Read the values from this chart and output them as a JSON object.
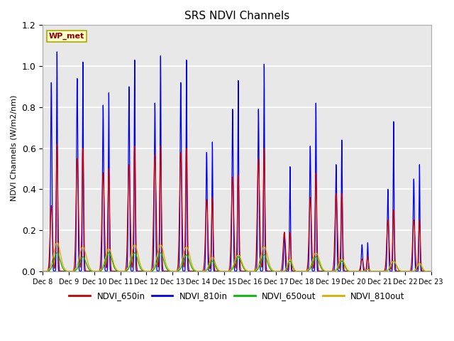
{
  "title": "SRS NDVI Channels",
  "ylabel": "NDVI Channels (W/m2/nm)",
  "annotation": "WP_met",
  "ylim": [
    0.0,
    1.2
  ],
  "background_color": "#e8e8e8",
  "grid_color": "white",
  "series": {
    "NDVI_650in": {
      "color": "#cc0000"
    },
    "NDVI_810in": {
      "color": "#0000ee"
    },
    "NDVI_650out": {
      "color": "#00bb00"
    },
    "NDVI_810out": {
      "color": "#ddaa00"
    }
  },
  "x_tick_labels": [
    "Dec 8",
    "Dec 9",
    "Dec 10",
    "Dec 11",
    "Dec 12",
    "Dec 13",
    "Dec 14",
    "Dec 15",
    "Dec 16",
    "Dec 17",
    "Dec 18",
    "Dec 19",
    "Dec 20",
    "Dec 21",
    "Dec 22",
    "Dec 23"
  ],
  "x_tick_positions": [
    8,
    9,
    10,
    11,
    12,
    13,
    14,
    15,
    16,
    17,
    18,
    19,
    20,
    21,
    22,
    23
  ],
  "day_spikes": [
    {
      "day": 8,
      "pre": {
        "blue": 0.92,
        "red": 0.32,
        "sw": 0.025
      },
      "main": {
        "blue": 1.07,
        "red": 0.62,
        "sw": 0.018
      },
      "green": 0.09,
      "orange": 0.14,
      "g_sw": 0.12
    },
    {
      "day": 9,
      "pre": {
        "blue": 0.94,
        "red": 0.55,
        "sw": 0.025
      },
      "main": {
        "blue": 1.02,
        "red": 0.6,
        "sw": 0.018
      },
      "green": 0.07,
      "orange": 0.12,
      "g_sw": 0.12
    },
    {
      "day": 10,
      "pre": {
        "blue": 0.81,
        "red": 0.48,
        "sw": 0.025
      },
      "main": {
        "blue": 0.87,
        "red": 0.5,
        "sw": 0.018
      },
      "green": 0.09,
      "orange": 0.11,
      "g_sw": 0.12
    },
    {
      "day": 11,
      "pre": {
        "blue": 0.9,
        "red": 0.52,
        "sw": 0.025
      },
      "main": {
        "blue": 1.03,
        "red": 0.61,
        "sw": 0.018
      },
      "green": 0.09,
      "orange": 0.13,
      "g_sw": 0.12
    },
    {
      "day": 12,
      "pre": {
        "blue": 0.82,
        "red": 0.57,
        "sw": 0.025
      },
      "main": {
        "blue": 1.05,
        "red": 0.61,
        "sw": 0.018
      },
      "green": 0.09,
      "orange": 0.13,
      "g_sw": 0.12
    },
    {
      "day": 13,
      "pre": {
        "blue": 0.92,
        "red": 0.58,
        "sw": 0.025
      },
      "main": {
        "blue": 1.03,
        "red": 0.6,
        "sw": 0.018
      },
      "green": 0.08,
      "orange": 0.12,
      "g_sw": 0.12
    },
    {
      "day": 14,
      "pre": {
        "blue": 0.58,
        "red": 0.35,
        "sw": 0.025
      },
      "main": {
        "blue": 0.63,
        "red": 0.36,
        "sw": 0.018
      },
      "green": 0.05,
      "orange": 0.07,
      "g_sw": 0.1
    },
    {
      "day": 15,
      "pre": {
        "blue": 0.79,
        "red": 0.46,
        "sw": 0.025
      },
      "main": {
        "blue": 0.93,
        "red": 0.47,
        "sw": 0.018
      },
      "green": 0.07,
      "orange": 0.08,
      "g_sw": 0.12
    },
    {
      "day": 16,
      "pre": {
        "blue": 0.79,
        "red": 0.55,
        "sw": 0.025
      },
      "main": {
        "blue": 1.01,
        "red": 0.6,
        "sw": 0.018
      },
      "green": 0.08,
      "orange": 0.12,
      "g_sw": 0.12
    },
    {
      "day": 17,
      "pre": {
        "blue": 0.19,
        "red": 0.19,
        "sw": 0.025
      },
      "main": {
        "blue": 0.51,
        "red": 0.19,
        "sw": 0.018
      },
      "green": 0.05,
      "orange": 0.06,
      "g_sw": 0.08
    },
    {
      "day": 18,
      "pre": {
        "blue": 0.61,
        "red": 0.36,
        "sw": 0.025
      },
      "main": {
        "blue": 0.82,
        "red": 0.48,
        "sw": 0.018
      },
      "green": 0.07,
      "orange": 0.09,
      "g_sw": 0.12
    },
    {
      "day": 19,
      "pre": {
        "blue": 0.52,
        "red": 0.38,
        "sw": 0.025
      },
      "main": {
        "blue": 0.64,
        "red": 0.38,
        "sw": 0.018
      },
      "green": 0.05,
      "orange": 0.06,
      "g_sw": 0.1
    },
    {
      "day": 20,
      "pre": {
        "blue": 0.13,
        "red": 0.06,
        "sw": 0.025
      },
      "main": {
        "blue": 0.14,
        "red": 0.07,
        "sw": 0.018
      },
      "green": 0.01,
      "orange": 0.01,
      "g_sw": 0.06
    },
    {
      "day": 21,
      "pre": {
        "blue": 0.4,
        "red": 0.25,
        "sw": 0.025
      },
      "main": {
        "blue": 0.73,
        "red": 0.3,
        "sw": 0.018
      },
      "green": 0.05,
      "orange": 0.05,
      "g_sw": 0.1
    },
    {
      "day": 22,
      "pre": {
        "blue": 0.45,
        "red": 0.25,
        "sw": 0.025
      },
      "main": {
        "blue": 0.52,
        "red": 0.25,
        "sw": 0.018
      },
      "green": 0.04,
      "orange": 0.04,
      "g_sw": 0.08
    }
  ]
}
